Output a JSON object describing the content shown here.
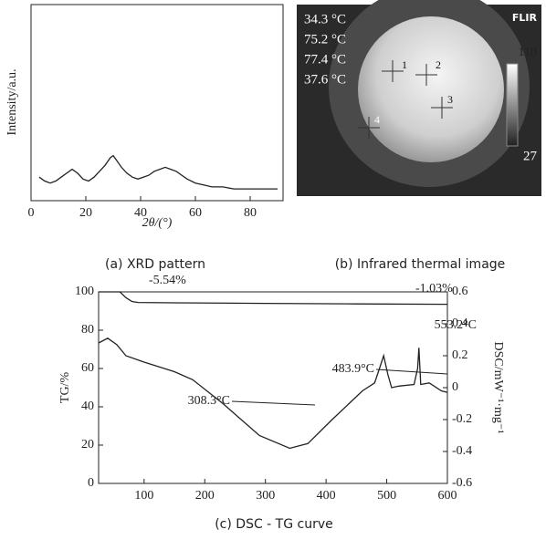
{
  "chart_data": [
    {
      "type": "line",
      "caption": "(a) XRD pattern",
      "xlabel": "2θ/(°)",
      "ylabel": "Intensity/a.u.",
      "xlim": [
        0,
        92
      ],
      "xticks": [
        0,
        20,
        40,
        60,
        80
      ],
      "ylim": [
        0,
        100
      ],
      "series": [
        {
          "color": "#222",
          "x": [
            3,
            5,
            7,
            9,
            11,
            13,
            15,
            17,
            19,
            21,
            23,
            25,
            27,
            29,
            30,
            31,
            33,
            35,
            37,
            39,
            41,
            43,
            45,
            47,
            49,
            51,
            53,
            55,
            57,
            60,
            63,
            66,
            70,
            74,
            78,
            82,
            86,
            90
          ],
          "values": [
            12,
            10,
            9,
            10,
            12,
            14,
            16,
            14,
            11,
            10,
            12,
            15,
            18,
            22,
            23,
            21,
            17,
            14,
            12,
            11,
            12,
            13,
            15,
            16,
            17,
            16,
            15,
            13,
            11,
            9,
            8,
            7,
            7,
            6,
            6,
            6,
            6,
            6
          ]
        }
      ]
    },
    {
      "type": "line",
      "caption": "(c) DSC - TG curve",
      "ylabel": "TG/%",
      "y2label": "DSC/mW⁻¹·mg⁻¹",
      "xlim": [
        25,
        600
      ],
      "xticks": [
        100,
        200,
        300,
        400,
        500,
        600
      ],
      "ylim": [
        0,
        100
      ],
      "yticks": [
        0,
        20,
        40,
        60,
        80,
        100
      ],
      "y2lim": [
        -0.6,
        0.6
      ],
      "y2ticks": [
        -0.6,
        -0.4,
        -0.2,
        0,
        0.2,
        0.4,
        0.6
      ],
      "series": [
        {
          "color": "#222",
          "x": [
            25,
            60,
            70,
            80,
            90,
            150,
            300,
            450,
            600
          ],
          "values": [
            100,
            100,
            97,
            95,
            94.5,
            94.3,
            94,
            93.7,
            93.5
          ]
        },
        {
          "color": "#222",
          "axis": "y2",
          "x": [
            25,
            40,
            55,
            70,
            100,
            150,
            180,
            230,
            290,
            340,
            370,
            410,
            460,
            480,
            488,
            495,
            502,
            508,
            520,
            545,
            551,
            553,
            556,
            570,
            590,
            600
          ],
          "values": [
            0.28,
            0.31,
            0.27,
            0.2,
            0.16,
            0.1,
            0.05,
            -0.1,
            -0.3,
            -0.38,
            -0.35,
            -0.2,
            -0.02,
            0.03,
            0.12,
            0.2,
            0.08,
            0.0,
            0.01,
            0.02,
            0.12,
            0.25,
            0.02,
            0.03,
            -0.02,
            -0.03
          ]
        }
      ],
      "annotations": [
        "-5.54%",
        "-1.03%",
        "553.2°C",
        "483.9°C",
        "308.3°C"
      ]
    }
  ],
  "thermal_image": {
    "caption": "(b) Infrared thermal image",
    "readings": [
      "34.3 °C",
      "75.2 °C",
      "77.4 °C",
      "37.6 °C"
    ],
    "logo": "FLIR",
    "scale_max": 110,
    "scale_min": 27,
    "markers": [
      "1",
      "2",
      "3",
      "4"
    ]
  }
}
